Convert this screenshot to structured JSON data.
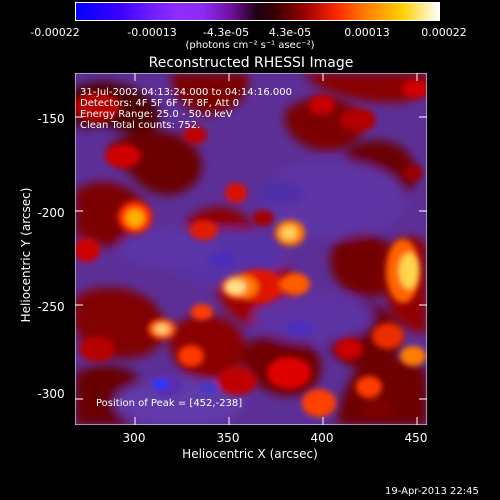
{
  "colorbar": {
    "ticks": [
      "-0.00022",
      "-0.00013",
      "-4.3e-05",
      "4.3e-05",
      "0.00013",
      "0.00022"
    ],
    "unit": "(photons cm⁻² s⁻¹ asec⁻²)"
  },
  "plot": {
    "title": "Reconstructed RHESSI Image",
    "xlabel": "Heliocentric X (arcsec)",
    "ylabel": "Heliocentric Y (arcsec)",
    "x_ticks": [
      "300",
      "350",
      "400",
      "450"
    ],
    "y_ticks": [
      "-150",
      "-200",
      "-250",
      "-300"
    ],
    "info_lines": [
      "31-Jul-2002 04:13:24.000 to 04:14:16.000",
      "Detectors: 4F 5F 6F 7F 8F, Att 0",
      "Energy Range: 25.0 - 50.0 keV",
      "Clean     Total counts: 752."
    ],
    "peak_text": "Position of Peak = [452,-238]"
  },
  "footer": {
    "timestamp": "19-Apr-2013 22:45"
  }
}
